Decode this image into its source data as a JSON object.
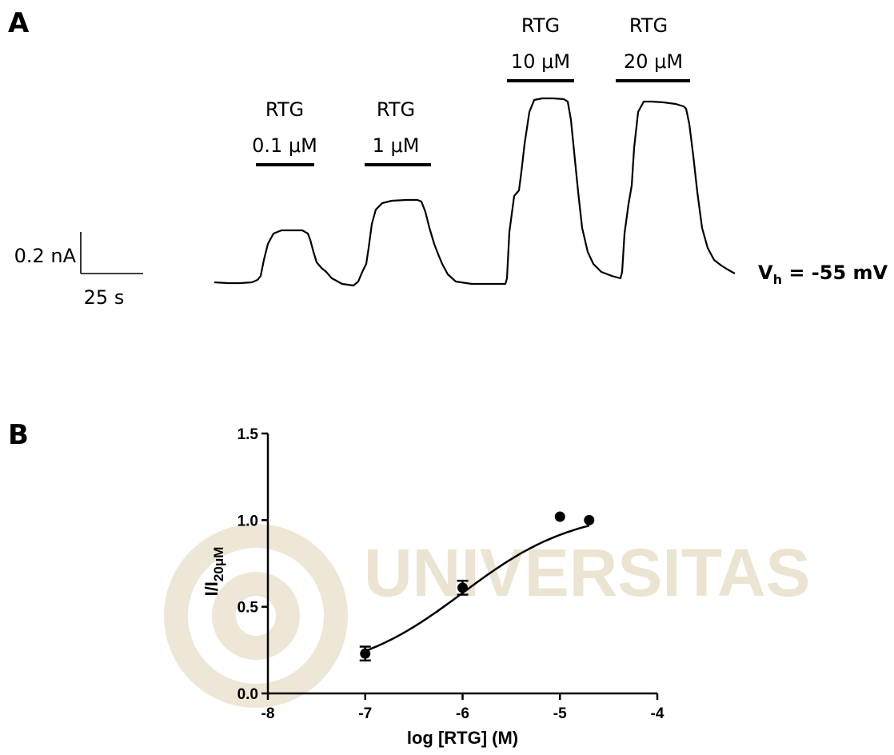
{
  "panels": {
    "a_letter": "A",
    "b_letter": "B"
  },
  "panel_a": {
    "applications": [
      {
        "drug": "RTG",
        "conc": "0.1 μM"
      },
      {
        "drug": "RTG",
        "conc": "1 μM"
      },
      {
        "drug": "RTG",
        "conc": "10 μM"
      },
      {
        "drug": "RTG",
        "conc": "20 μM"
      }
    ],
    "scale_current": "0.2 nA",
    "scale_time": "25 s",
    "holding_potential": {
      "prefix": "V",
      "subscript": "h",
      "value": " = -55 mV"
    }
  },
  "watermark": {
    "text": "UNIVERSITAS"
  },
  "chart_data": {
    "type": "scatter",
    "xlabel": "log [RTG] (M)",
    "ylabel_main": "I/I",
    "ylabel_sub": "20μM",
    "xlim": [
      -8,
      -4
    ],
    "ylim": [
      0,
      1.5
    ],
    "x_ticks": [
      -8,
      -7,
      -6,
      -5,
      -4
    ],
    "y_ticks": [
      0.0,
      0.5,
      1.0,
      1.5
    ],
    "x_tick_labels": [
      "-8",
      "-7",
      "-6",
      "-5",
      "-4"
    ],
    "y_tick_labels": [
      "0.0",
      "0.5",
      "1.0",
      "1.5"
    ],
    "points": [
      {
        "x": -7.0,
        "y": 0.23,
        "err": 0.04
      },
      {
        "x": -6.0,
        "y": 0.61,
        "err": 0.04
      },
      {
        "x": -5.0,
        "y": 1.02,
        "err": 0
      },
      {
        "x": -4.7,
        "y": 1.0,
        "err": 0
      }
    ],
    "fit": {
      "type": "hill",
      "bottom": 0.1,
      "top": 1.06,
      "log_ec50": -6.0,
      "hill_slope": 0.75,
      "x_range": [
        -7.0,
        -4.7
      ]
    }
  }
}
